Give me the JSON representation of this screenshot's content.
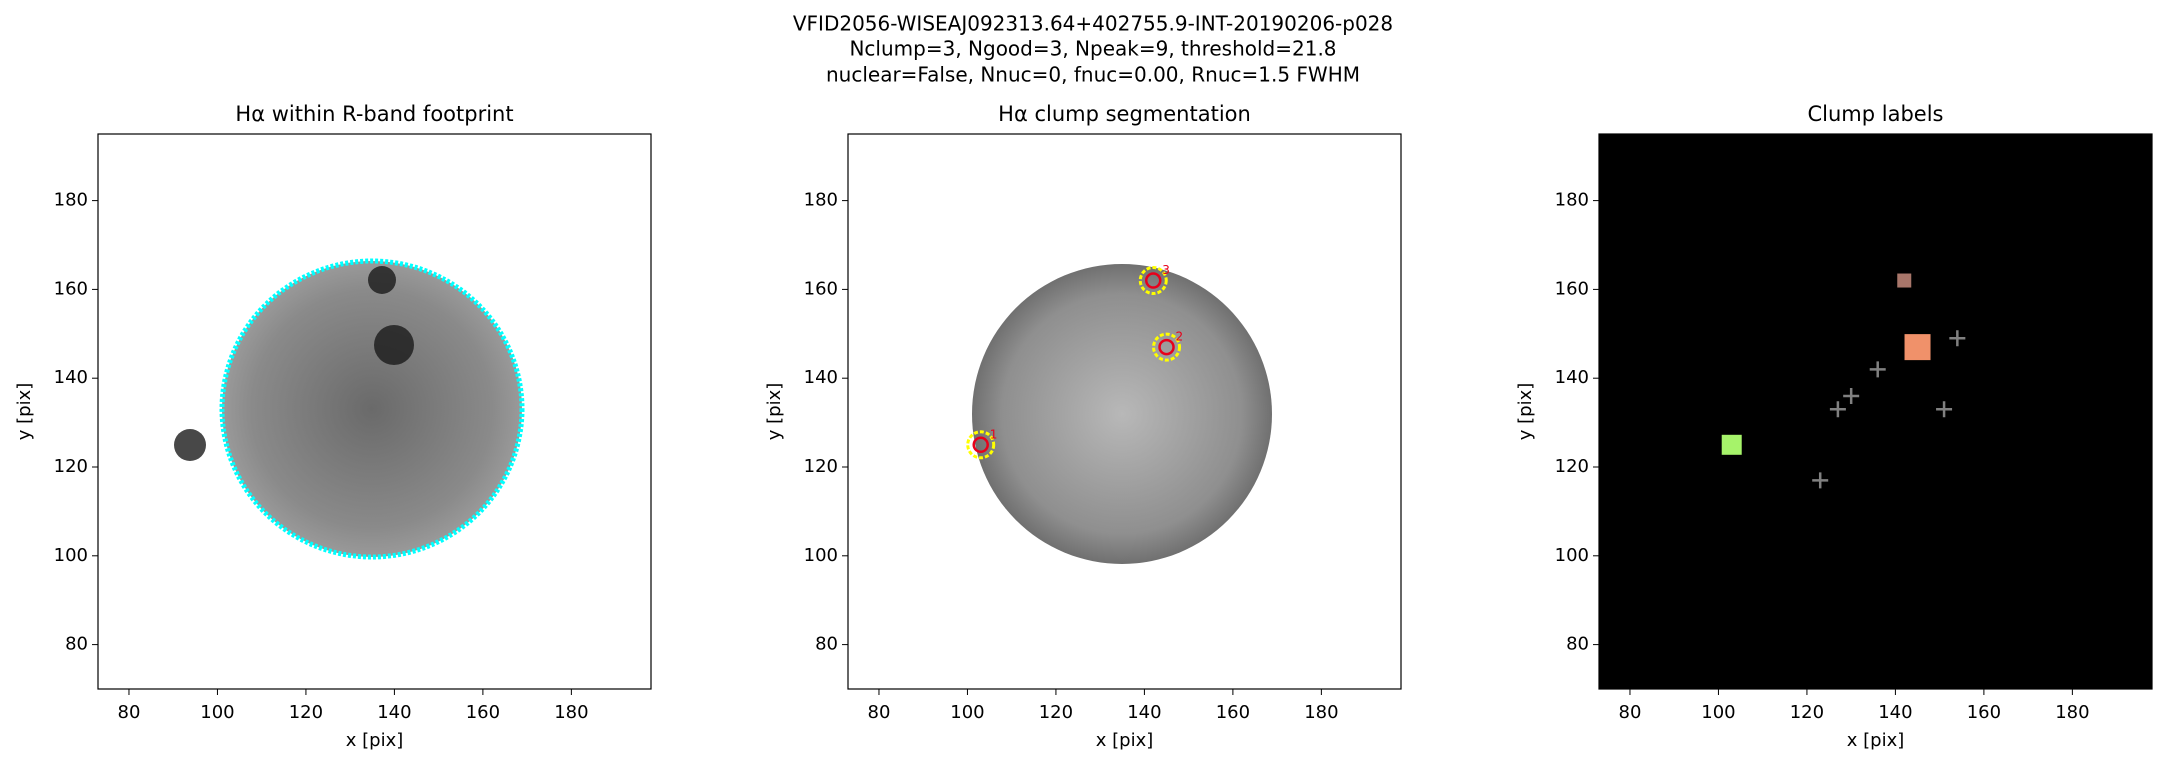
{
  "figure": {
    "title_lines": [
      "VFID2056-WISEAJ092313.64+402755.9-INT-20190206-p028",
      "Nclump=3, Ngood=3, Npeak=9, threshold=21.8",
      "nuclear=False, Nnuc=0, fnuc=0.00, Rnuc=1.5 FWHM"
    ]
  },
  "chart_data": [
    {
      "type": "image",
      "title": "Hα within R-band footprint",
      "xlabel": "x [pix]",
      "ylabel": "y [pix]",
      "xlim": [
        73,
        198
      ],
      "ylim": [
        70,
        195
      ],
      "xticks": [
        80,
        100,
        120,
        140,
        160,
        180
      ],
      "yticks": [
        80,
        100,
        120,
        140,
        160,
        180
      ],
      "background": "#ffffff",
      "contour_color": "#00ffff"
    },
    {
      "type": "image",
      "title": "Hα clump segmentation",
      "xlabel": "x [pix]",
      "ylabel": "y [pix]",
      "xlim": [
        73,
        198
      ],
      "ylim": [
        70,
        195
      ],
      "xticks": [
        80,
        100,
        120,
        140,
        160,
        180
      ],
      "yticks": [
        80,
        100,
        120,
        140,
        160,
        180
      ],
      "background": "#ffffff",
      "clumps": {
        "x": [
          103,
          145,
          142
        ],
        "y": [
          125,
          147,
          162
        ],
        "labels": [
          "1",
          "2",
          "3"
        ],
        "color": "#e8001a",
        "contour_color": "#ffff00"
      }
    },
    {
      "type": "image",
      "title": "Clump labels",
      "xlabel": "x [pix]",
      "ylabel": "y [pix]",
      "xlim": [
        73,
        198
      ],
      "ylim": [
        70,
        195
      ],
      "xticks": [
        80,
        100,
        120,
        140,
        160,
        180
      ],
      "yticks": [
        80,
        100,
        120,
        140,
        160,
        180
      ],
      "background": "#000000",
      "clumps": {
        "x": [
          103,
          145,
          142
        ],
        "y": [
          125,
          147,
          162
        ],
        "colors": [
          "#a6f36a",
          "#f0916a",
          "#a8766a"
        ]
      },
      "peaks": {
        "x": [
          123,
          127,
          130,
          136,
          151,
          154
        ],
        "y": [
          117,
          133,
          136,
          142,
          133,
          149
        ],
        "color": "#808080"
      }
    }
  ]
}
